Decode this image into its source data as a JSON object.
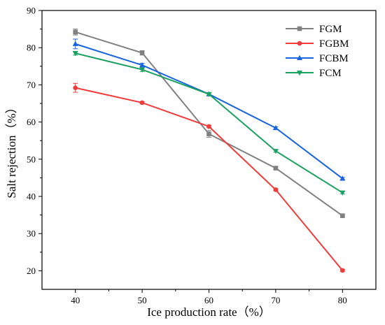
{
  "chart_data": {
    "type": "line",
    "xlabel": "Ice production rate（%）",
    "ylabel": "Salt rejection（%）",
    "x": [
      40,
      50,
      60,
      70,
      80
    ],
    "xticks": [
      "40",
      "50",
      "60",
      "70",
      "80"
    ],
    "yticks": [
      "20",
      "30",
      "40",
      "50",
      "60",
      "70",
      "80",
      "90"
    ],
    "xlim": [
      35,
      85
    ],
    "ylim": [
      15,
      90
    ],
    "legend_position": "top-right",
    "series": [
      {
        "name": "FGM",
        "color": "#808080",
        "marker": "square",
        "values": [
          84.2,
          78.6,
          56.8,
          47.6,
          34.8
        ],
        "errors": [
          0.8,
          0.6,
          0.9,
          0.4,
          0.3
        ]
      },
      {
        "name": "FGBM",
        "color": "#ee3b3b",
        "marker": "circle",
        "values": [
          69.2,
          65.2,
          58.8,
          41.8,
          20.1
        ],
        "errors": [
          1.2,
          0.3,
          0.3,
          0.3,
          0.3
        ]
      },
      {
        "name": "FCBM",
        "color": "#1763e0",
        "marker": "triangle-up",
        "values": [
          81.0,
          75.3,
          67.5,
          58.4,
          44.8
        ],
        "errors": [
          1.3,
          0.5,
          0.4,
          0.3,
          0.3
        ]
      },
      {
        "name": "FCM",
        "color": "#1aa160",
        "marker": "triangle-down",
        "values": [
          78.5,
          74.1,
          67.5,
          52.2,
          41.0
        ],
        "errors": [
          0.5,
          0.5,
          0.3,
          0.3,
          0.3
        ]
      }
    ]
  }
}
